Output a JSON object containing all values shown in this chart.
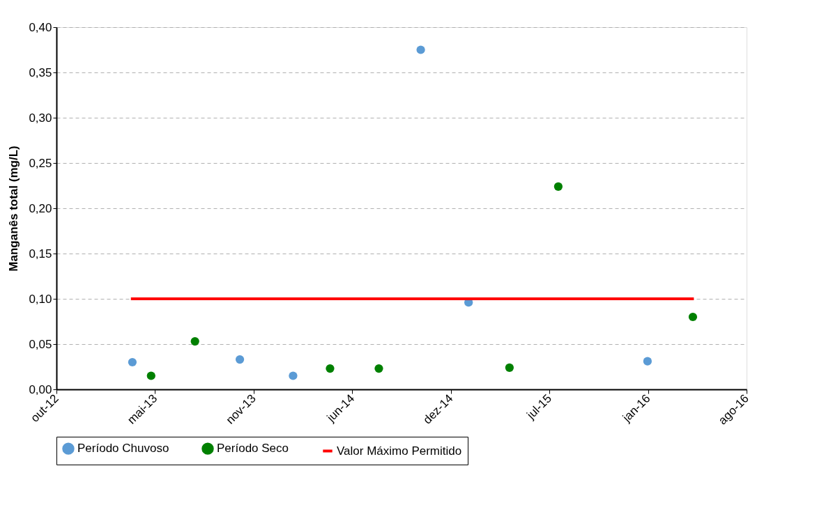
{
  "chart_data": {
    "type": "scatter",
    "ylabel": "Manganês total (mg/L)",
    "xlim": [
      "2012-10-15",
      "2016-08-15"
    ],
    "xticks": [
      {
        "value": "2012-10-15",
        "label": "out-12"
      },
      {
        "value": "2013-05-03",
        "label": "mai-13"
      },
      {
        "value": "2013-11-19",
        "label": "nov-13"
      },
      {
        "value": "2014-06-07",
        "label": "jun-14"
      },
      {
        "value": "2014-12-24",
        "label": "dez-14"
      },
      {
        "value": "2015-07-12",
        "label": "jul-15"
      },
      {
        "value": "2016-01-28",
        "label": "jan-16"
      },
      {
        "value": "2016-08-15",
        "label": "ago-16"
      }
    ],
    "ylim": [
      0,
      0.4
    ],
    "yticks": [
      {
        "value": 0,
        "label": "0,00"
      },
      {
        "value": 0.05,
        "label": "0,05"
      },
      {
        "value": 0.1,
        "label": "0,10"
      },
      {
        "value": 0.15,
        "label": "0,15"
      },
      {
        "value": 0.2,
        "label": "0,20"
      },
      {
        "value": 0.25,
        "label": "0,25"
      },
      {
        "value": 0.3,
        "label": "0,30"
      },
      {
        "value": 0.35,
        "label": "0,35"
      },
      {
        "value": 0.4,
        "label": "0,40"
      }
    ],
    "grid": "y",
    "legend": "bottom",
    "marker": "circle",
    "series": [
      {
        "name": "Período Chuvoso",
        "color": "#5b9bd5",
        "x": [
          "2013-03-18",
          "2013-10-22",
          "2014-02-07",
          "2014-10-24",
          "2015-01-29",
          "2016-01-27"
        ],
        "values": [
          0.03,
          0.033,
          0.015,
          0.375,
          0.096,
          0.031
        ]
      },
      {
        "name": "Período Seco",
        "color": "#008000",
        "x": [
          "2013-04-25",
          "2013-07-23",
          "2014-04-23",
          "2014-07-31",
          "2015-04-22",
          "2015-07-30",
          "2016-04-28"
        ],
        "values": [
          0.015,
          0.053,
          0.023,
          0.023,
          0.024,
          0.224,
          0.08
        ]
      },
      {
        "name": "Valor Máximo Permitido",
        "type": "line",
        "line_style": "solid",
        "marker": "none",
        "color": "#ff0000",
        "x": [
          "2013-03-15",
          "2016-04-30"
        ],
        "values": [
          0.1,
          0.1
        ]
      }
    ]
  }
}
